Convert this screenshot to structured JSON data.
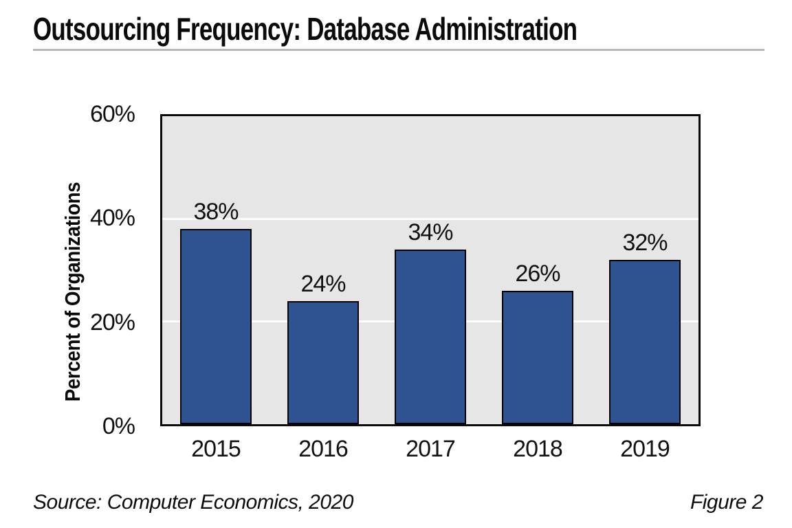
{
  "chart_data": {
    "type": "bar",
    "title": "Outsourcing Frequency: Database Administration",
    "categories": [
      "2015",
      "2016",
      "2017",
      "2018",
      "2019"
    ],
    "values": [
      38,
      24,
      34,
      26,
      32
    ],
    "value_labels": [
      "38%",
      "24%",
      "34%",
      "26%",
      "32%"
    ],
    "xlabel": "",
    "ylabel": "Percent of Organizations",
    "ylim": [
      0,
      60
    ],
    "y_ticks": [
      {
        "value": 0,
        "label": "0%"
      },
      {
        "value": 20,
        "label": "20%"
      },
      {
        "value": 40,
        "label": "40%"
      },
      {
        "value": 60,
        "label": "60%"
      }
    ],
    "grid_values": [
      20,
      40
    ],
    "grid": "horizontal white lines",
    "legend": "none",
    "bar_color": "#2E5390",
    "bar_border_color": "#000000",
    "plot_background": "#E6E6E6",
    "source": "Source: Computer Economics, 2020",
    "figure": "Figure 2"
  }
}
